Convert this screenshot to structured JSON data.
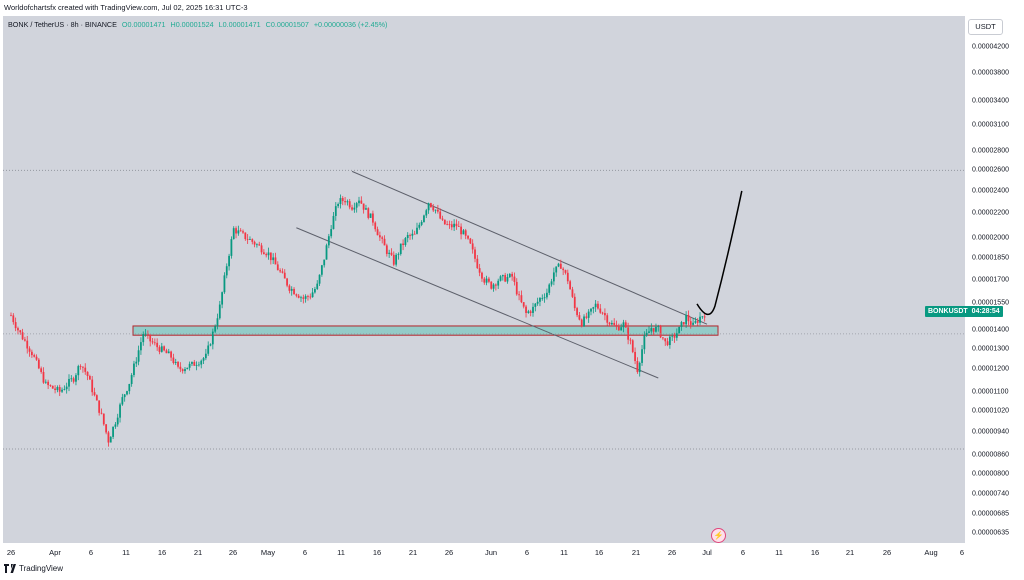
{
  "header": {
    "attribution": "Worldofchartsfx created with TradingView.com, Jul 02, 2025 16:31 UTC-3"
  },
  "legend": {
    "symbol": "BONK / TetherUS · 8h · BINANCE",
    "open": "O0.00001471",
    "high": "H0.00001524",
    "low": "L0.00001471",
    "close": "C0.00001507",
    "change": "+0.00000036 (+2.45%)"
  },
  "currency_button": "USDT",
  "price_tag": {
    "symbol": "BONKUSDT",
    "countdown": "04:28:54"
  },
  "footer": {
    "brand": "TradingView"
  },
  "colors": {
    "up": "#089981",
    "down": "#f23645",
    "background": "#d1d4dc",
    "zone_fill": "#7fc8c1",
    "zone_border": "#b2242a",
    "channel": "#5d606b",
    "projection": "#000000"
  },
  "chart_data": {
    "type": "candlestick",
    "symbol": "BONKUSDT",
    "interval": "8h",
    "y_ticks": [
      "0.00004200",
      "0.00003800",
      "0.00003400",
      "0.00003100",
      "0.00002800",
      "0.00002600",
      "0.00002400",
      "0.00002200",
      "0.00002000",
      "0.00001850",
      "0.00001700",
      "0.00001550",
      "0.00001400",
      "0.00001300",
      "0.00001200",
      "0.00001100",
      "0.00001020",
      "0.00000940",
      "0.00000860",
      "0.00000800",
      "0.00000740",
      "0.00000685",
      "0.00000635"
    ],
    "x_ticks": [
      "26",
      "Apr",
      "6",
      "11",
      "16",
      "21",
      "26",
      "May",
      "6",
      "11",
      "16",
      "21",
      "26",
      "Jun",
      "6",
      "11",
      "16",
      "21",
      "26",
      "Jul",
      "6",
      "11",
      "16",
      "21",
      "26",
      "Aug",
      "6"
    ],
    "y_scale": "log",
    "price_path": [
      [
        "2025-03-24",
        1.48e-05
      ],
      [
        "2025-03-25",
        1.4e-05
      ],
      [
        "2025-03-27",
        1.28e-05
      ],
      [
        "2025-03-29",
        1.13e-05
      ],
      [
        "2025-03-31",
        1.1e-05
      ],
      [
        "2025-04-02",
        1.16e-05
      ],
      [
        "2025-04-03",
        1.23e-05
      ],
      [
        "2025-04-04",
        1.17e-05
      ],
      [
        "2025-04-05",
        1.08e-05
      ],
      [
        "2025-04-06",
        1e-05
      ],
      [
        "2025-04-07",
        9.1e-06
      ],
      [
        "2025-04-08",
        9.8e-06
      ],
      [
        "2025-04-09",
        1.07e-05
      ],
      [
        "2025-04-10",
        1.14e-05
      ],
      [
        "2025-04-11",
        1.25e-05
      ],
      [
        "2025-04-12",
        1.38e-05
      ],
      [
        "2025-04-13",
        1.34e-05
      ],
      [
        "2025-04-14",
        1.31e-05
      ],
      [
        "2025-04-16",
        1.26e-05
      ],
      [
        "2025-04-17",
        1.2e-05
      ],
      [
        "2025-04-19",
        1.22e-05
      ],
      [
        "2025-04-21",
        1.26e-05
      ],
      [
        "2025-04-22",
        1.38e-05
      ],
      [
        "2025-04-23",
        1.53e-05
      ],
      [
        "2025-04-24",
        1.8e-05
      ],
      [
        "2025-04-25",
        2.07e-05
      ],
      [
        "2025-04-26",
        2.03e-05
      ],
      [
        "2025-04-28",
        1.96e-05
      ],
      [
        "2025-04-30",
        1.88e-05
      ],
      [
        "2025-05-01",
        1.8e-05
      ],
      [
        "2025-05-03",
        1.65e-05
      ],
      [
        "2025-05-05",
        1.58e-05
      ],
      [
        "2025-05-06",
        1.6e-05
      ],
      [
        "2025-05-07",
        1.66e-05
      ],
      [
        "2025-05-08",
        1.85e-05
      ],
      [
        "2025-05-09",
        2.1e-05
      ],
      [
        "2025-05-10",
        2.3e-05
      ],
      [
        "2025-05-11",
        2.32e-05
      ],
      [
        "2025-05-12",
        2.26e-05
      ],
      [
        "2025-05-13",
        2.33e-05
      ],
      [
        "2025-05-14",
        2.22e-05
      ],
      [
        "2025-05-15",
        2.14e-05
      ],
      [
        "2025-05-16",
        2e-05
      ],
      [
        "2025-05-17",
        1.9e-05
      ],
      [
        "2025-05-18",
        1.82e-05
      ],
      [
        "2025-05-19",
        1.93e-05
      ],
      [
        "2025-05-20",
        2.01e-05
      ],
      [
        "2025-05-21",
        2.02e-05
      ],
      [
        "2025-05-22",
        2.15e-05
      ],
      [
        "2025-05-23",
        2.3e-05
      ],
      [
        "2025-05-24",
        2.23e-05
      ],
      [
        "2025-05-25",
        2.12e-05
      ],
      [
        "2025-05-26",
        2.09e-05
      ],
      [
        "2025-05-27",
        2.1e-05
      ],
      [
        "2025-05-28",
        2.03e-05
      ],
      [
        "2025-05-29",
        1.94e-05
      ],
      [
        "2025-05-30",
        1.8e-05
      ],
      [
        "2025-05-31",
        1.7e-05
      ],
      [
        "2025-06-01",
        1.66e-05
      ],
      [
        "2025-06-02",
        1.7e-05
      ],
      [
        "2025-06-04",
        1.72e-05
      ],
      [
        "2025-06-05",
        1.58e-05
      ],
      [
        "2025-06-06",
        1.49e-05
      ],
      [
        "2025-06-07",
        1.52e-05
      ],
      [
        "2025-06-08",
        1.58e-05
      ],
      [
        "2025-06-09",
        1.62e-05
      ],
      [
        "2025-06-10",
        1.75e-05
      ],
      [
        "2025-06-11",
        1.8e-05
      ],
      [
        "2025-06-12",
        1.7e-05
      ],
      [
        "2025-06-13",
        1.52e-05
      ],
      [
        "2025-06-14",
        1.44e-05
      ],
      [
        "2025-06-15",
        1.48e-05
      ],
      [
        "2025-06-16",
        1.54e-05
      ],
      [
        "2025-06-17",
        1.5e-05
      ],
      [
        "2025-06-18",
        1.44e-05
      ],
      [
        "2025-06-19",
        1.41e-05
      ],
      [
        "2025-06-20",
        1.43e-05
      ],
      [
        "2025-06-21",
        1.33e-05
      ],
      [
        "2025-06-22",
        1.2e-05
      ],
      [
        "2025-06-23",
        1.35e-05
      ],
      [
        "2025-06-24",
        1.41e-05
      ],
      [
        "2025-06-25",
        1.4e-05
      ],
      [
        "2025-06-26",
        1.33e-05
      ],
      [
        "2025-06-27",
        1.35e-05
      ],
      [
        "2025-06-28",
        1.4e-05
      ],
      [
        "2025-06-29",
        1.47e-05
      ],
      [
        "2025-06-30",
        1.42e-05
      ],
      [
        "2025-07-01",
        1.47e-05
      ],
      [
        "2025-07-02",
        1.5e-05
      ]
    ],
    "support_zone": [
      1.37e-05,
      1.42e-05
    ],
    "channel": {
      "upper": [
        [
          "2025-05-12",
          2.59e-05
        ],
        [
          "2025-07-02",
          1.43e-05
        ]
      ],
      "lower": [
        [
          "2025-05-04",
          2.08e-05
        ],
        [
          "2025-06-25",
          1.16e-05
        ]
      ]
    },
    "projection_to": [
      "2025-07-07",
      2.4e-05
    ],
    "dotted_levels": [
      2.6e-05,
      8.8e-06
    ]
  }
}
